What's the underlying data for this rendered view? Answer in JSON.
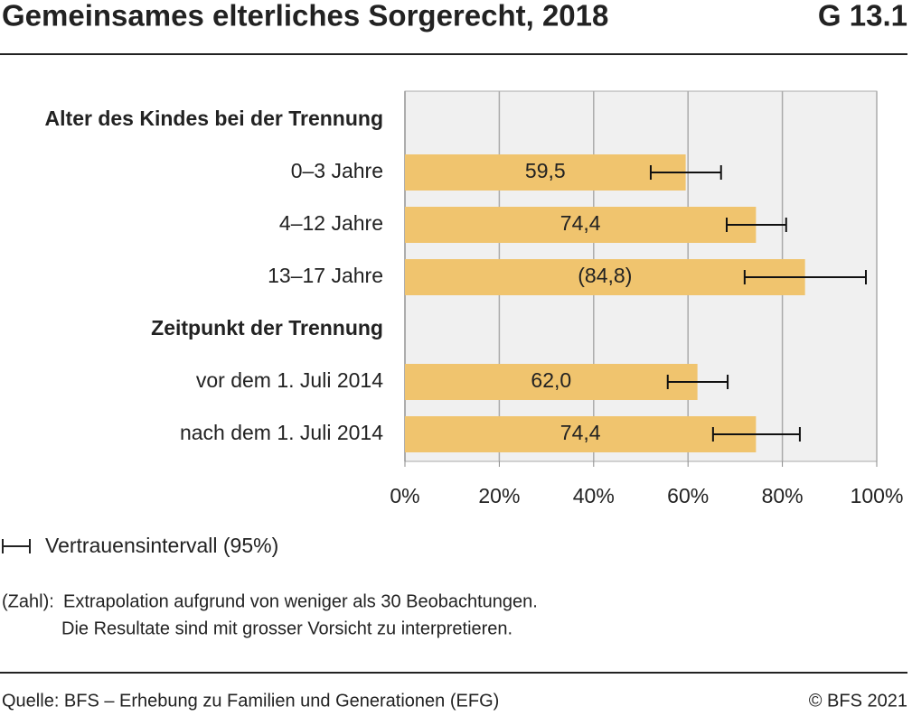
{
  "chart_data": {
    "type": "bar",
    "orientation": "horizontal",
    "title": "Gemeinsames elterliches Sorgerecht, 2018",
    "figure_id": "G 13.1",
    "color": "#f0c46e",
    "grid": true,
    "groups": [
      {
        "name": "Alter des Kindes bei der Trennung",
        "categories": [
          "0–3 Jahre",
          "4–12 Jahre",
          "13–17 Jahre"
        ],
        "values": [
          59.5,
          74.4,
          84.8
        ],
        "value_labels": [
          "59,5",
          "74,4",
          "(84,8)"
        ],
        "ci_low": [
          52.1,
          68.2,
          72.0
        ],
        "ci_high": [
          67.0,
          80.8,
          97.7
        ]
      },
      {
        "name": "Zeitpunkt der Trennung",
        "categories": [
          "vor dem 1. Juli 2014",
          "nach dem 1. Juli 2014"
        ],
        "values": [
          62.0,
          74.4
        ],
        "value_labels": [
          "62,0",
          "74,4"
        ],
        "ci_low": [
          55.7,
          65.3
        ],
        "ci_high": [
          68.4,
          83.7
        ]
      }
    ],
    "xlim": [
      0,
      100
    ],
    "xticks": [
      {
        "value": 0,
        "label": "0%"
      },
      {
        "value": 20,
        "label": "20%"
      },
      {
        "value": 40,
        "label": "40%"
      },
      {
        "value": 60,
        "label": "60%"
      },
      {
        "value": 80,
        "label": "80%"
      },
      {
        "value": 100,
        "label": "100%"
      }
    ],
    "legend": "Vertrauensintervall (95%)",
    "note_key": "(Zahl):",
    "note_lines": [
      "Extrapolation aufgrund von weniger als 30 Beobachtungen.",
      "Die Resultate sind mit grosser Vorsicht zu interpretieren."
    ],
    "source": "Quelle: BFS – Erhebung zu Familien und Generationen (EFG)",
    "copyright": "© BFS 2021"
  }
}
